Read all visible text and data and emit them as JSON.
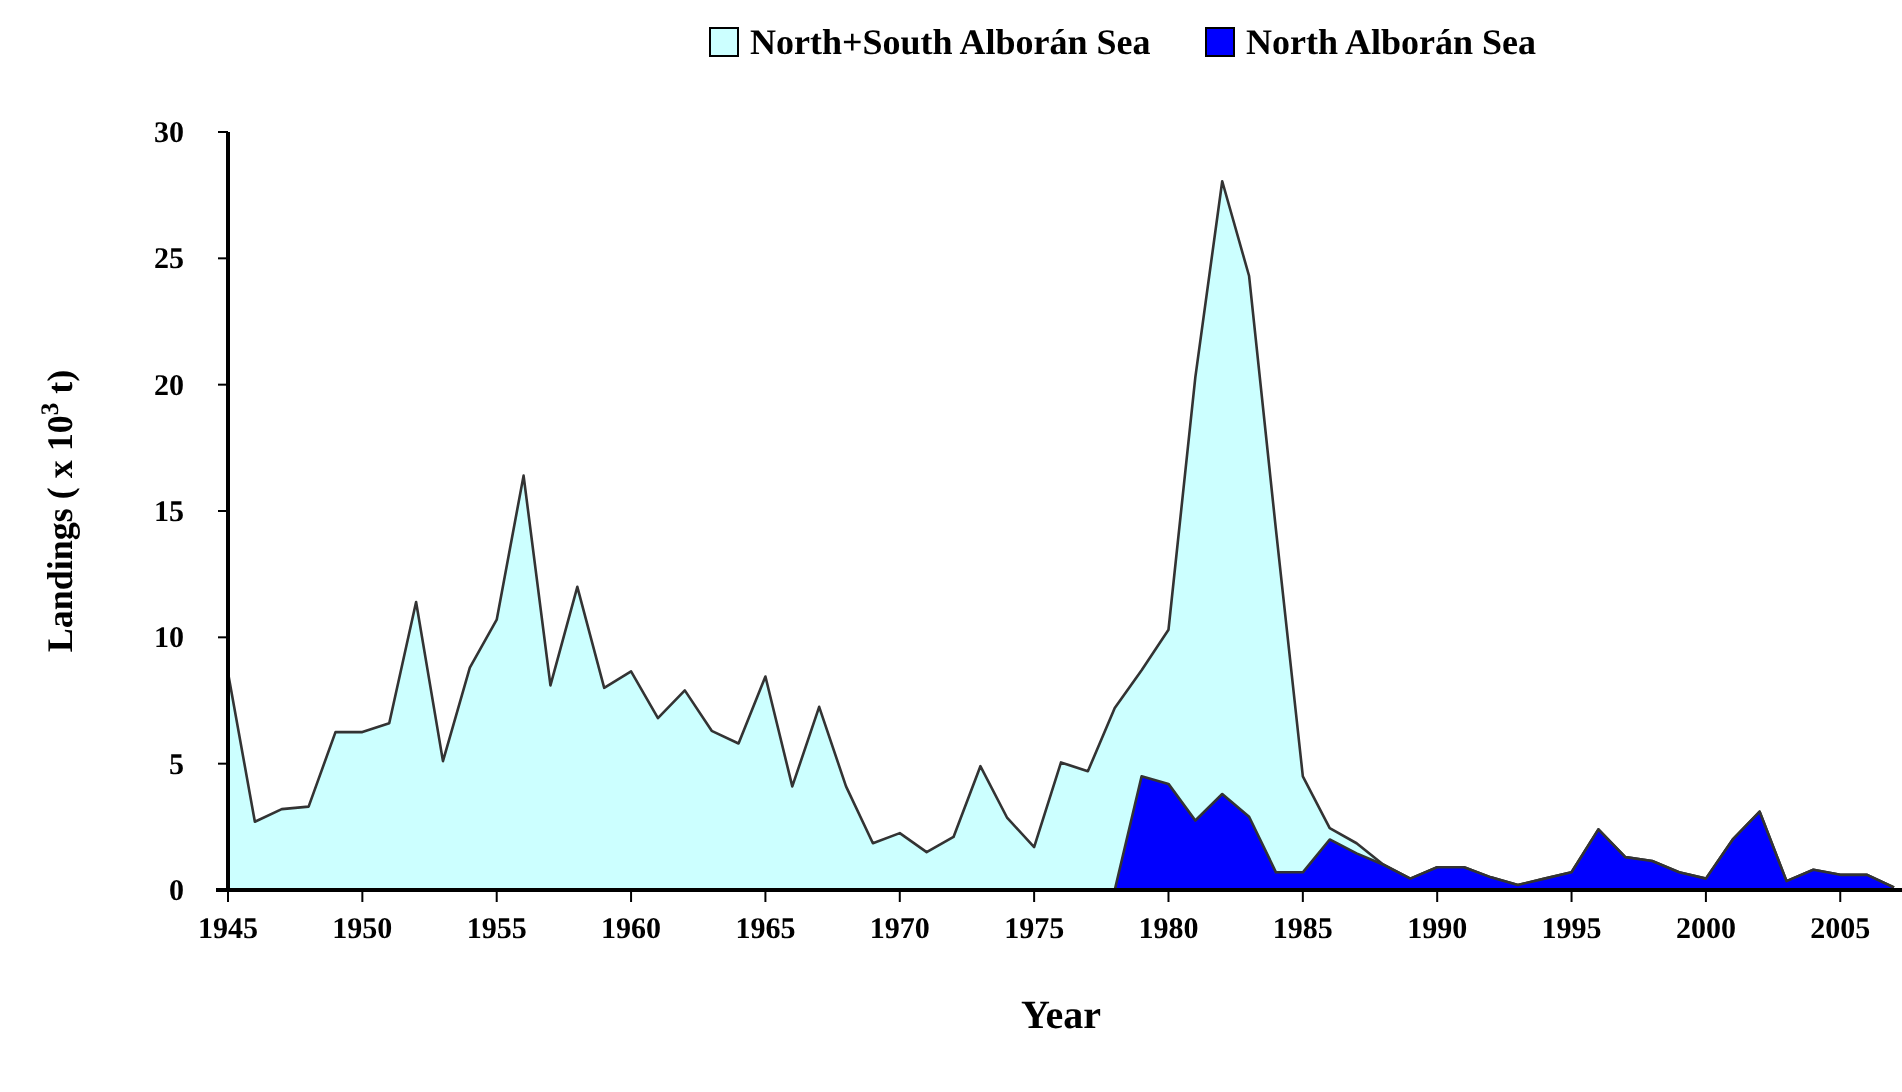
{
  "chart_data": {
    "type": "area",
    "xlabel": "Year",
    "ylabel": "Landings ( x 10$^{3}$ t)",
    "xlim": [
      1945,
      2007
    ],
    "ylim": [
      0,
      30
    ],
    "xticks": [
      1945,
      1950,
      1955,
      1960,
      1965,
      1970,
      1975,
      1980,
      1985,
      1990,
      1995,
      2000,
      2005
    ],
    "yticks": [
      0,
      5,
      10,
      15,
      20,
      25,
      30
    ],
    "grid": false,
    "legend": "top",
    "series": [
      {
        "name": "North+South Alborán Sea",
        "color": "#ccffff",
        "x": [
          1945,
          1946,
          1947,
          1948,
          1949,
          1950,
          1951,
          1952,
          1953,
          1954,
          1955,
          1956,
          1957,
          1958,
          1959,
          1960,
          1961,
          1962,
          1963,
          1964,
          1965,
          1966,
          1967,
          1968,
          1969,
          1970,
          1971,
          1972,
          1973,
          1974,
          1975,
          1976,
          1977,
          1978,
          1979,
          1980,
          1981,
          1982,
          1983,
          1984,
          1985,
          1986,
          1987,
          1988,
          1989,
          1990,
          1991,
          1992,
          1993,
          1994,
          1995,
          1996,
          1997,
          1998,
          1999,
          2000,
          2001,
          2002,
          2003,
          2004,
          2005,
          2006,
          2007
        ],
        "values": [
          8.6,
          2.7,
          3.2,
          3.3,
          6.25,
          6.25,
          6.6,
          11.4,
          5.1,
          8.8,
          10.7,
          16.4,
          8.1,
          12,
          8,
          8.65,
          6.8,
          7.9,
          6.3,
          5.8,
          8.45,
          4.1,
          7.25,
          4.1,
          1.85,
          2.25,
          1.5,
          2.1,
          4.9,
          2.85,
          1.7,
          5.05,
          4.7,
          7.2,
          8.7,
          10.3,
          20.3,
          28.05,
          24.3,
          14.25,
          4.5,
          2.45,
          1.85,
          1,
          0.45,
          0.9,
          0.9,
          0.5,
          0.2,
          0.45,
          0.7,
          2.4,
          1.3,
          1.15,
          0.7,
          0.45,
          2,
          3.1,
          0.35,
          0.8,
          0.6,
          0.6,
          0.1
        ]
      },
      {
        "name": "North Alborán Sea",
        "color": "#0000ff",
        "x": [
          1978,
          1979,
          1980,
          1981,
          1982,
          1983,
          1984,
          1985,
          1986,
          1987,
          1988,
          1989,
          1990,
          1991,
          1992,
          1993,
          1994,
          1995,
          1996,
          1997,
          1998,
          1999,
          2000,
          2001,
          2002,
          2003,
          2004,
          2005,
          2006,
          2007
        ],
        "values": [
          0,
          4.5,
          4.2,
          2.75,
          3.8,
          2.9,
          0.7,
          0.7,
          2,
          1.45,
          1,
          0.45,
          0.9,
          0.9,
          0.5,
          0.2,
          0.45,
          0.7,
          2.4,
          1.3,
          1.15,
          0.7,
          0.45,
          2,
          3.1,
          0.35,
          0.8,
          0.6,
          0.6,
          0.1
        ]
      }
    ]
  }
}
